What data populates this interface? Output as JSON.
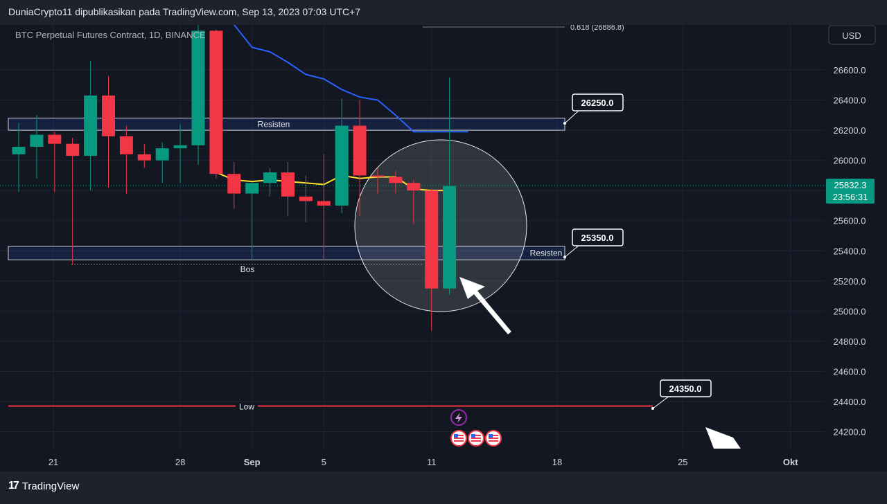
{
  "header": {
    "published_by": "DuniaCrypto11 dipublikasikan pada TradingView.com, Sep 13, 2023 07:03 UTC+7"
  },
  "footer": {
    "brand": "TradingView",
    "logo_glyph": "17"
  },
  "chart_data": {
    "type": "candlestick",
    "symbol_line": "BTC Perpetual Futures Contract, 1D, BINANCE",
    "currency": "USD",
    "x_ticks": [
      "21",
      "28",
      "Sep",
      "5",
      "11",
      "18",
      "25",
      "Okt"
    ],
    "y_ticks": [
      "26600.0",
      "26400.0",
      "26200.0",
      "26000.0",
      "25800.0",
      "25600.0",
      "25400.0",
      "25200.0",
      "25000.0",
      "24800.0",
      "24600.0",
      "24400.0",
      "24200.0"
    ],
    "y_range": [
      24100,
      26870
    ],
    "last_price": "25832.3",
    "countdown": "23:56:31",
    "colors": {
      "up": "#089981",
      "down": "#f23645",
      "blue_ma": "#2962ff",
      "yellow_ma": "#ffe135",
      "low_line": "#f23645"
    },
    "candles": [
      {
        "o": 26040,
        "h": 26250,
        "l": 25790,
        "c": 26090
      },
      {
        "o": 26090,
        "h": 26300,
        "l": 25880,
        "c": 26170
      },
      {
        "o": 26170,
        "h": 26190,
        "l": 25790,
        "c": 26110
      },
      {
        "o": 26110,
        "h": 26150,
        "l": 25310,
        "c": 26030
      },
      {
        "o": 26030,
        "h": 26660,
        "l": 25800,
        "c": 26430
      },
      {
        "o": 26430,
        "h": 26560,
        "l": 25820,
        "c": 26160
      },
      {
        "o": 26160,
        "h": 26230,
        "l": 25780,
        "c": 26040
      },
      {
        "o": 26040,
        "h": 26110,
        "l": 25950,
        "c": 26000
      },
      {
        "o": 26000,
        "h": 26120,
        "l": 25850,
        "c": 26080
      },
      {
        "o": 26080,
        "h": 26240,
        "l": 25850,
        "c": 26100
      },
      {
        "o": 26100,
        "h": 27100,
        "l": 25970,
        "c": 26860
      },
      {
        "o": 26860,
        "h": 26870,
        "l": 25880,
        "c": 25910
      },
      {
        "o": 25910,
        "h": 25990,
        "l": 25680,
        "c": 25780
      },
      {
        "o": 25780,
        "h": 25850,
        "l": 25340,
        "c": 25850
      },
      {
        "o": 25850,
        "h": 25950,
        "l": 25760,
        "c": 25920
      },
      {
        "o": 25920,
        "h": 25990,
        "l": 25630,
        "c": 25760
      },
      {
        "o": 25760,
        "h": 25900,
        "l": 25590,
        "c": 25730
      },
      {
        "o": 25730,
        "h": 26040,
        "l": 25340,
        "c": 25700
      },
      {
        "o": 25700,
        "h": 26410,
        "l": 25650,
        "c": 26230
      },
      {
        "o": 26230,
        "h": 26400,
        "l": 25630,
        "c": 25900
      },
      {
        "o": 25900,
        "h": 25950,
        "l": 25780,
        "c": 25890
      },
      {
        "o": 25890,
        "h": 25930,
        "l": 25780,
        "c": 25850
      },
      {
        "o": 25850,
        "h": 25870,
        "l": 25580,
        "c": 25800
      },
      {
        "o": 25800,
        "h": 25810,
        "l": 24870,
        "c": 25150
      },
      {
        "o": 25150,
        "h": 26550,
        "l": 25110,
        "c": 25830
      }
    ],
    "blue_ma": [
      26900,
      26750,
      26720,
      26650,
      26570,
      26540,
      26470,
      26420,
      26400,
      26300,
      26190,
      26190
    ],
    "yellow_ma": [
      25920,
      25870,
      25860,
      25870,
      25860,
      25850,
      25840,
      25900,
      25880,
      25890,
      25890,
      25810,
      25800,
      25800
    ],
    "zones": [
      {
        "label": "Resisten",
        "top": 26280,
        "bottom": 26200,
        "tag": "26250.0"
      },
      {
        "label": "Resisten",
        "top": 25430,
        "bottom": 25340,
        "tag": "25350.0"
      }
    ],
    "bos_label": "Bos",
    "low_line": {
      "label": "Low",
      "value": 24370,
      "tag": "24350.0"
    },
    "fib_label": "0.618 (26886.8)"
  }
}
